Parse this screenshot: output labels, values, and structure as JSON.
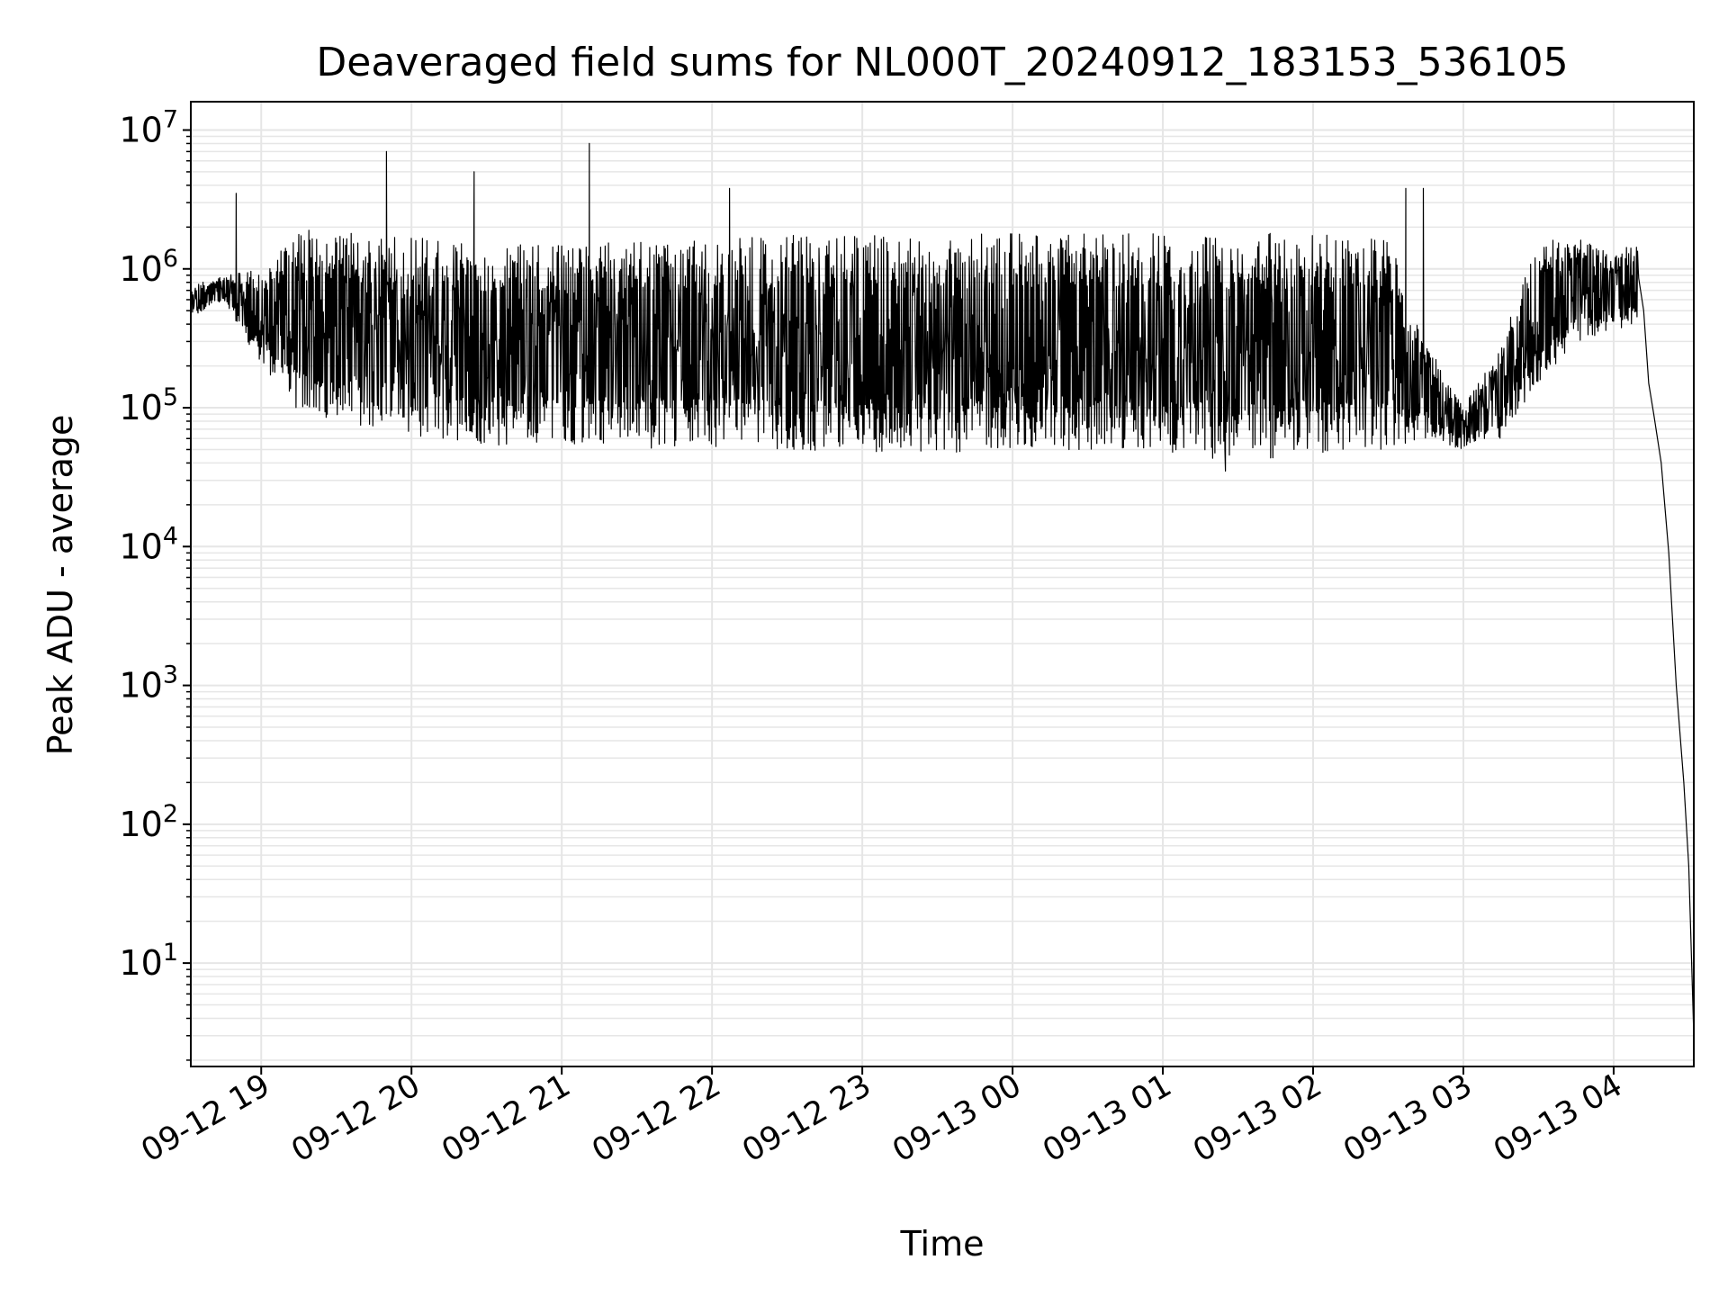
{
  "chart_data": {
    "type": "line",
    "title": "Deaveraged field sums for NL000T_20240912_183153_536105",
    "xlabel": "Time",
    "ylabel": "Peak ADU - average",
    "yscale": "log",
    "ylim": [
      1.8,
      16000000
    ],
    "xlim": [
      "2024-09-12 18:31:53",
      "2024-09-13 04:32:00"
    ],
    "grid": true,
    "line_color": "#000000",
    "grid_color": "#e6e6e6",
    "x_ticks": [
      {
        "time": "2024-09-12 19:00",
        "label": "09-12 19"
      },
      {
        "time": "2024-09-12 20:00",
        "label": "09-12 20"
      },
      {
        "time": "2024-09-12 21:00",
        "label": "09-12 21"
      },
      {
        "time": "2024-09-12 22:00",
        "label": "09-12 22"
      },
      {
        "time": "2024-09-12 23:00",
        "label": "09-12 23"
      },
      {
        "time": "2024-09-13 00:00",
        "label": "09-13 00"
      },
      {
        "time": "2024-09-13 01:00",
        "label": "09-13 01"
      },
      {
        "time": "2024-09-13 02:00",
        "label": "09-13 02"
      },
      {
        "time": "2024-09-13 03:00",
        "label": "09-13 03"
      },
      {
        "time": "2024-09-13 04:00",
        "label": "09-13 04"
      }
    ],
    "y_ticks": [
      {
        "value": 10,
        "base": "10",
        "exp": "1"
      },
      {
        "value": 100,
        "base": "10",
        "exp": "2"
      },
      {
        "value": 1000,
        "base": "10",
        "exp": "3"
      },
      {
        "value": 10000,
        "base": "10",
        "exp": "4"
      },
      {
        "value": 100000,
        "base": "10",
        "exp": "5"
      },
      {
        "value": 1000000,
        "base": "10",
        "exp": "6"
      },
      {
        "value": 10000000,
        "base": "10",
        "exp": "7"
      }
    ],
    "series": [
      {
        "envelope": [
          {
            "time": "2024-09-12 18:31:53",
            "low": 450000,
            "high": 750000
          },
          {
            "time": "2024-09-12 18:45",
            "low": 600000,
            "high": 900000
          },
          {
            "time": "2024-09-12 19:00",
            "low": 200000,
            "high": 1000000
          },
          {
            "time": "2024-09-12 19:15",
            "low": 90000,
            "high": 1900000
          },
          {
            "time": "2024-09-12 19:30",
            "low": 75000,
            "high": 1900000
          },
          {
            "time": "2024-09-12 19:45",
            "low": 70000,
            "high": 1700000
          },
          {
            "time": "2024-09-12 20:00",
            "low": 65000,
            "high": 1700000
          },
          {
            "time": "2024-09-12 20:15",
            "low": 55000,
            "high": 1700000
          },
          {
            "time": "2024-09-12 20:30",
            "low": 52000,
            "high": 1500000
          },
          {
            "time": "2024-09-12 21:00",
            "low": 55000,
            "high": 1500000
          },
          {
            "time": "2024-09-12 21:30",
            "low": 50000,
            "high": 1600000
          },
          {
            "time": "2024-09-12 22:00",
            "low": 50000,
            "high": 1700000
          },
          {
            "time": "2024-09-12 22:30",
            "low": 48000,
            "high": 1750000
          },
          {
            "time": "2024-09-12 23:00",
            "low": 48000,
            "high": 1750000
          },
          {
            "time": "2024-09-13 00:00",
            "low": 47000,
            "high": 1800000
          },
          {
            "time": "2024-09-13 01:00",
            "low": 48000,
            "high": 1800000
          },
          {
            "time": "2024-09-13 01:30",
            "low": 40000,
            "high": 1800000
          },
          {
            "time": "2024-09-13 02:00",
            "low": 47000,
            "high": 1800000
          },
          {
            "time": "2024-09-13 02:30",
            "low": 50000,
            "high": 1700000
          },
          {
            "time": "2024-09-13 02:45",
            "low": 60000,
            "high": 300000
          },
          {
            "time": "2024-09-13 03:00",
            "low": 50000,
            "high": 100000
          },
          {
            "time": "2024-09-13 03:15",
            "low": 60000,
            "high": 300000
          },
          {
            "time": "2024-09-13 03:30",
            "low": 150000,
            "high": 1600000
          },
          {
            "time": "2024-09-13 03:45",
            "low": 300000,
            "high": 1700000
          },
          {
            "time": "2024-09-13 04:00",
            "low": 350000,
            "high": 1300000
          },
          {
            "time": "2024-09-13 04:10",
            "low": 400000,
            "high": 1600000
          }
        ],
        "decay": [
          {
            "time": "2024-09-13 04:12",
            "value": 500000
          },
          {
            "time": "2024-09-13 04:14",
            "value": 150000
          },
          {
            "time": "2024-09-13 04:16",
            "value": 90000
          },
          {
            "time": "2024-09-13 04:19",
            "value": 40000
          },
          {
            "time": "2024-09-13 04:22",
            "value": 9000
          },
          {
            "time": "2024-09-13 04:25",
            "value": 1000
          },
          {
            "time": "2024-09-13 04:28",
            "value": 200
          },
          {
            "time": "2024-09-13 04:30",
            "value": 50
          },
          {
            "time": "2024-09-13 04:32",
            "value": 3
          }
        ],
        "spikes": [
          {
            "time": "2024-09-12 18:50",
            "value": 3500000
          },
          {
            "time": "2024-09-12 19:50",
            "value": 7000000
          },
          {
            "time": "2024-09-12 20:25",
            "value": 5000000
          },
          {
            "time": "2024-09-12 21:11",
            "value": 8000000
          },
          {
            "time": "2024-09-12 22:07",
            "value": 3800000
          },
          {
            "time": "2024-09-13 02:37",
            "value": 3800000
          },
          {
            "time": "2024-09-13 02:44",
            "value": 3800000
          }
        ],
        "lows": [
          {
            "time": "2024-09-13 01:25",
            "value": 35000
          }
        ]
      }
    ]
  }
}
